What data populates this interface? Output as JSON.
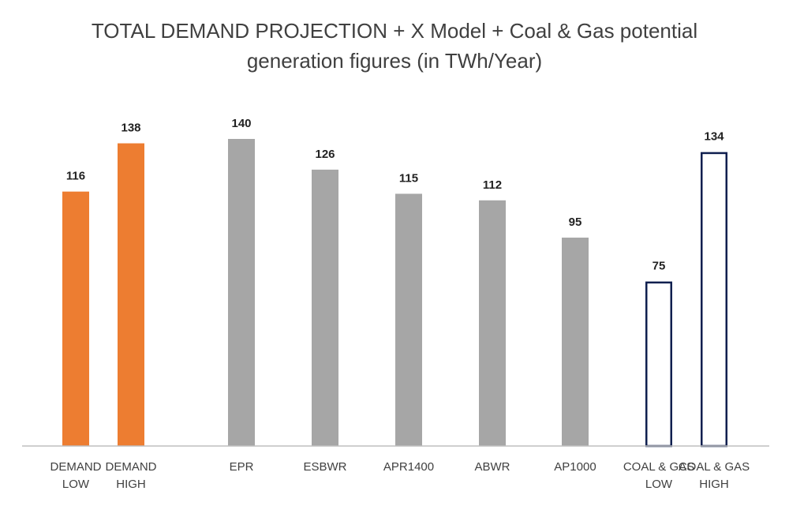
{
  "chart_data": {
    "type": "bar",
    "title_line1": "TOTAL DEMAND PROJECTION + X Model + Coal & Gas potential",
    "title_line2": "generation figures (in TWh/Year)",
    "ylim": [
      0,
      140
    ],
    "grid": false,
    "categories": [
      [
        "DEMAND",
        "LOW"
      ],
      [
        "DEMAND",
        "HIGH"
      ],
      [
        "EPR"
      ],
      [
        "ESBWR"
      ],
      [
        "APR1400"
      ],
      [
        "ABWR"
      ],
      [
        "AP1000"
      ],
      [
        "COAL & GAS",
        "LOW"
      ],
      [
        "COAL & GAS",
        "HIGH"
      ]
    ],
    "values": [
      116,
      138,
      140,
      126,
      115,
      112,
      95,
      75,
      134
    ],
    "colors": {
      "demand": "#ED7D31",
      "reactor": "#A6A6A6",
      "coal_gas_outline": "#0F1F4F",
      "axis": "#BFBFBF"
    },
    "bar_styles": [
      "demand",
      "demand",
      "reactor",
      "reactor",
      "reactor",
      "reactor",
      "reactor",
      "coal_gas",
      "coal_gas"
    ]
  }
}
